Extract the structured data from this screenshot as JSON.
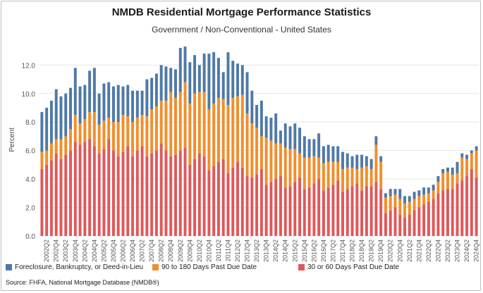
{
  "title": "NMDB Residential Mortgage Performance Statistics",
  "subtitle": "Government / Non-Conventional - United States",
  "source": "Source:  FHFA, National Mortgage Database (NMDB®)",
  "colors": {
    "foreclosure": "#4e79a7",
    "days_90_180": "#f28e2b",
    "days_30_60": "#e15759",
    "grid": "#e6e6e6",
    "axis_text": "#555555"
  },
  "chart_data": {
    "type": "bar",
    "stacked": true,
    "ylabel": "Percent",
    "ylim": [
      0,
      13.5
    ],
    "yticks": [
      "0.0",
      "2.0",
      "4.0",
      "6.0",
      "8.0",
      "10.0",
      "12.0"
    ],
    "grid": true,
    "legend_position": "bottom",
    "categories": [
      "2002Q1",
      "2002Q2",
      "2002Q3",
      "2002Q4",
      "2003Q1",
      "2003Q2",
      "2003Q3",
      "2003Q4",
      "2004Q1",
      "2004Q2",
      "2004Q3",
      "2004Q4",
      "2005Q1",
      "2005Q2",
      "2005Q3",
      "2005Q4",
      "2006Q1",
      "2006Q2",
      "2006Q3",
      "2006Q4",
      "2007Q1",
      "2007Q2",
      "2007Q3",
      "2007Q4",
      "2008Q1",
      "2008Q2",
      "2008Q3",
      "2008Q4",
      "2009Q1",
      "2009Q2",
      "2009Q3",
      "2009Q4",
      "2010Q1",
      "2010Q2",
      "2010Q3",
      "2010Q4",
      "2011Q1",
      "2011Q2",
      "2011Q3",
      "2011Q4",
      "2012Q1",
      "2012Q2",
      "2012Q3",
      "2012Q4",
      "2013Q1",
      "2013Q2",
      "2013Q3",
      "2013Q4",
      "2014Q1",
      "2014Q2",
      "2014Q3",
      "2014Q4",
      "2015Q1",
      "2015Q2",
      "2015Q3",
      "2015Q4",
      "2016Q1",
      "2016Q2",
      "2016Q3",
      "2016Q4",
      "2017Q1",
      "2017Q2",
      "2017Q3",
      "2017Q4",
      "2018Q1",
      "2018Q2",
      "2018Q3",
      "2018Q4",
      "2019Q1",
      "2019Q2",
      "2019Q3",
      "2019Q4",
      "2020Q1",
      "2020Q2",
      "2020Q3",
      "2020Q4",
      "2021Q1",
      "2021Q2",
      "2021Q3",
      "2021Q4",
      "2022Q1",
      "2022Q2",
      "2022Q3",
      "2022Q4",
      "2023Q1",
      "2023Q2",
      "2023Q3",
      "2023Q4",
      "2024Q1",
      "2024Q2",
      "2024Q3",
      "2024Q4"
    ],
    "tick_labels": [
      "2002Q2",
      "2002Q4",
      "2003Q2",
      "2003Q4",
      "2004Q2",
      "2004Q4",
      "2005Q2",
      "2005Q4",
      "2006Q2",
      "2006Q4",
      "2007Q2",
      "2007Q4",
      "2008Q2",
      "2008Q4",
      "2009Q2",
      "2009Q4",
      "2010Q2",
      "2010Q4",
      "2011Q2",
      "2011Q4",
      "2012Q2",
      "2012Q4",
      "2013Q2",
      "2013Q4",
      "2014Q2",
      "2014Q4",
      "2015Q2",
      "2015Q4",
      "2016Q2",
      "2016Q4",
      "2017Q2",
      "2017Q4",
      "2018Q2",
      "2018Q4",
      "2019Q2",
      "2019Q4",
      "2020Q2",
      "2020Q4",
      "2021Q2",
      "2021Q4",
      "2022Q2",
      "2022Q4",
      "2023Q2",
      "2023Q4",
      "2024Q2",
      "2024Q4"
    ],
    "series": [
      {
        "name": "30 or 60 Days Past Due Date",
        "color_key": "days_30_60",
        "values": [
          4.7,
          5.0,
          5.3,
          5.8,
          5.4,
          5.7,
          6.0,
          6.6,
          6.4,
          6.6,
          6.8,
          6.3,
          5.8,
          6.1,
          6.8,
          6.0,
          5.6,
          5.9,
          6.3,
          5.6,
          6.0,
          6.3,
          5.6,
          5.8,
          6.0,
          6.5,
          6.0,
          5.6,
          5.7,
          6.0,
          6.2,
          5.0,
          5.4,
          5.8,
          5.6,
          4.6,
          4.9,
          5.2,
          5.4,
          4.4,
          4.8,
          5.2,
          4.8,
          4.2,
          4.1,
          4.3,
          4.7,
          3.6,
          3.8,
          4.0,
          4.2,
          3.4,
          3.5,
          3.8,
          4.1,
          3.3,
          3.4,
          3.7,
          4.0,
          3.2,
          3.4,
          3.6,
          3.9,
          3.1,
          3.3,
          3.5,
          3.7,
          3.2,
          3.5,
          3.5,
          3.8,
          3.3,
          1.6,
          1.8,
          2.0,
          1.5,
          1.3,
          1.5,
          1.8,
          2.0,
          2.2,
          2.4,
          2.6,
          3.0,
          3.2,
          3.3,
          3.3,
          3.7,
          3.9,
          4.2,
          4.7,
          4.1
        ]
      },
      {
        "name": "90 to 180 Days Past Due Date",
        "color_key": "days_90_180",
        "values": [
          1.2,
          1.0,
          1.2,
          1.0,
          1.4,
          1.3,
          1.5,
          1.9,
          1.5,
          1.6,
          1.9,
          2.4,
          2.0,
          2.0,
          1.5,
          2.0,
          2.4,
          2.6,
          2.1,
          2.4,
          2.3,
          2.2,
          2.8,
          3.1,
          3.1,
          3.0,
          3.5,
          4.5,
          4.0,
          4.1,
          4.6,
          4.3,
          4.6,
          4.3,
          4.5,
          4.3,
          4.4,
          4.5,
          4.2,
          4.8,
          4.9,
          4.6,
          5.1,
          4.4,
          3.8,
          3.3,
          2.3,
          3.3,
          2.9,
          2.5,
          2.3,
          2.8,
          2.6,
          2.3,
          1.7,
          2.2,
          2.1,
          1.9,
          1.5,
          1.9,
          1.8,
          1.6,
          1.3,
          1.6,
          1.5,
          1.3,
          1.0,
          1.6,
          1.4,
          1.2,
          2.6,
          1.9,
          1.1,
          1.0,
          0.9,
          1.1,
          1.0,
          0.9,
          0.8,
          0.8,
          0.7,
          0.6,
          0.6,
          0.8,
          1.2,
          1.2,
          1.0,
          0.7,
          1.6,
          1.2,
          1.1,
          1.9
        ]
      },
      {
        "name": "Foreclosure, Bankruptcy, or Deed-in-Lieu",
        "color_key": "foreclosure",
        "values": [
          2.8,
          3.0,
          3.0,
          3.5,
          3.0,
          3.0,
          2.9,
          3.3,
          2.6,
          2.4,
          2.9,
          3.1,
          2.2,
          2.6,
          2.5,
          2.5,
          2.6,
          2.0,
          2.2,
          2.2,
          1.9,
          1.7,
          2.6,
          2.2,
          2.3,
          2.5,
          2.4,
          1.7,
          2.0,
          3.1,
          2.5,
          2.9,
          2.7,
          1.9,
          2.7,
          3.9,
          3.6,
          2.8,
          1.9,
          3.7,
          2.6,
          2.3,
          2.1,
          2.9,
          2.3,
          1.6,
          2.5,
          1.5,
          1.6,
          2.1,
          0.9,
          1.7,
          1.6,
          1.8,
          1.8,
          1.5,
          1.3,
          1.2,
          1.7,
          1.2,
          1.2,
          1.1,
          1.1,
          1.2,
          1.0,
          0.8,
          1.0,
          0.9,
          0.7,
          0.7,
          0.6,
          0.4,
          0.3,
          0.5,
          0.4,
          0.7,
          0.5,
          0.4,
          0.5,
          0.4,
          0.5,
          0.4,
          0.4,
          0.4,
          0.3,
          0.3,
          0.5,
          0.8,
          0.3,
          0.3,
          0.2,
          0.3
        ]
      }
    ]
  },
  "legend": [
    {
      "label": "Foreclosure, Bankruptcy, or Deed-in-Lieu",
      "color_key": "foreclosure"
    },
    {
      "label": "90 to 180 Days Past Due Date",
      "color_key": "days_90_180"
    },
    {
      "label": "30 or 60 Days Past Due Date",
      "color_key": "days_30_60"
    }
  ]
}
